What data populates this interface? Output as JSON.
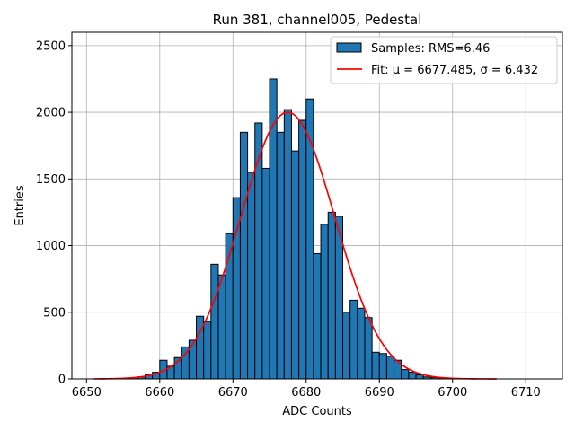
{
  "chart_data": {
    "type": "bar",
    "title": "Run 381, channel005, Pedestal",
    "xlabel": "ADC Counts",
    "ylabel": "Entries",
    "xlim": [
      6648,
      6715
    ],
    "ylim": [
      0,
      2600
    ],
    "xticks": [
      6650,
      6660,
      6670,
      6680,
      6690,
      6700,
      6710
    ],
    "yticks": [
      0,
      500,
      1000,
      1500,
      2000,
      2500
    ],
    "grid": true,
    "legend_position": "top-right",
    "bin_width": 1,
    "series": [
      {
        "name": "Samples: RMS=6.46",
        "type": "histogram",
        "color": "#1f77b4",
        "bin_starts": [
          6656,
          6657,
          6658,
          6659,
          6660,
          6661,
          6662,
          6663,
          6664,
          6665,
          6666,
          6667,
          6668,
          6669,
          6670,
          6671,
          6672,
          6673,
          6674,
          6675,
          6676,
          6677,
          6678,
          6679,
          6680,
          6681,
          6682,
          6683,
          6684,
          6685,
          6686,
          6687,
          6688,
          6689,
          6690,
          6691,
          6692,
          6693,
          6694,
          6695,
          6696,
          6697,
          6698,
          6699
        ],
        "values": [
          10,
          15,
          30,
          50,
          140,
          95,
          160,
          240,
          290,
          470,
          430,
          860,
          780,
          1090,
          1360,
          1850,
          1550,
          1920,
          1580,
          2250,
          1850,
          2020,
          1710,
          1940,
          2100,
          940,
          1160,
          1250,
          1220,
          500,
          590,
          530,
          460,
          200,
          190,
          170,
          140,
          70,
          50,
          30,
          15,
          10,
          5,
          3
        ]
      },
      {
        "name_prefix": "Fit: ",
        "name_mu_part": "μ = 6677.485, ",
        "name_sigma_part": "σ = 6.432",
        "type": "gaussian",
        "color": "#ff0000",
        "amplitude": 2000,
        "mu": 6677.485,
        "sigma": 6.432,
        "x_range": [
          6651,
          6706
        ]
      }
    ]
  }
}
